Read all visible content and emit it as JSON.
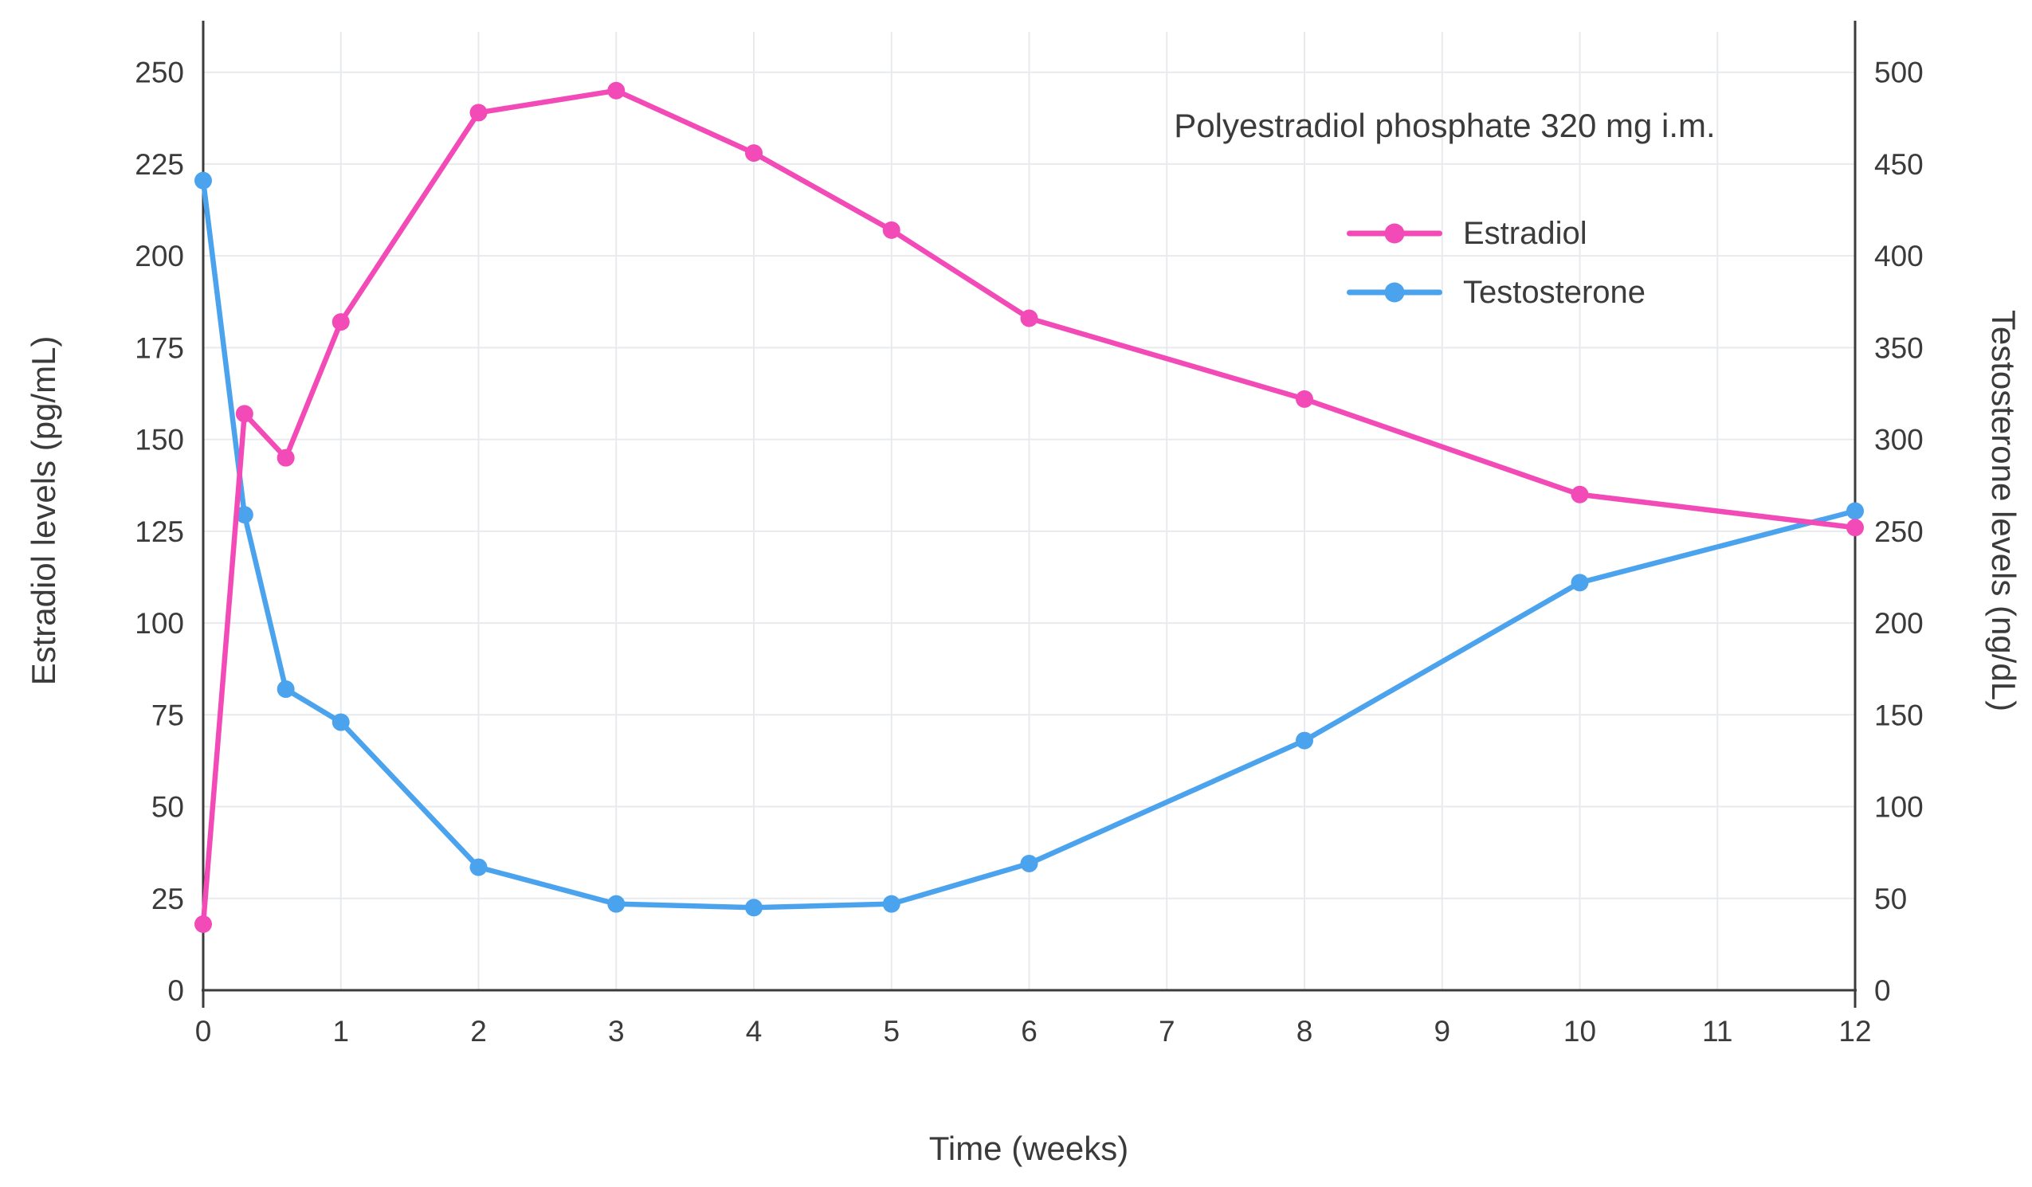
{
  "chart_data": {
    "type": "line",
    "annotation": "Polyestradiol phosphate 320 mg i.m.",
    "xlabel": "Time (weeks)",
    "ylabel_left": "Estradiol levels (pg/mL)",
    "ylabel_right": "Testosterone levels (ng/dL)",
    "xlim": [
      0,
      12
    ],
    "x_ticks": [
      0,
      1,
      2,
      3,
      4,
      5,
      6,
      7,
      8,
      9,
      10,
      11,
      12
    ],
    "y_left": {
      "range": [
        0,
        261
      ],
      "ticks": [
        0,
        25,
        50,
        75,
        100,
        125,
        150,
        175,
        200,
        225,
        250
      ]
    },
    "y_right": {
      "range": [
        0,
        522
      ],
      "ticks": [
        0,
        50,
        100,
        150,
        200,
        250,
        300,
        350,
        400,
        450,
        500
      ]
    },
    "grid": true,
    "legend_position": "inside-top-right",
    "series": [
      {
        "name": "Estradiol",
        "axis": "left",
        "color": "#f24bb8",
        "x": [
          0,
          0.3,
          0.6,
          1,
          2,
          3,
          4,
          5,
          6,
          8,
          10,
          12
        ],
        "values": [
          18,
          157,
          145,
          182,
          239,
          245,
          228,
          207,
          183,
          161,
          135,
          126
        ]
      },
      {
        "name": "Testosterone",
        "axis": "right",
        "color": "#4ba3ee",
        "x": [
          0,
          0.3,
          0.6,
          1,
          2,
          3,
          4,
          5,
          6,
          8,
          10,
          12
        ],
        "values": [
          441,
          259,
          164,
          146,
          67,
          47,
          45,
          47,
          69,
          136,
          222,
          261
        ]
      }
    ],
    "colors": {
      "grid": "#e8eaed",
      "axis": "#3b3b3b",
      "text": "#3b3b3b",
      "background": "#ffffff"
    }
  }
}
